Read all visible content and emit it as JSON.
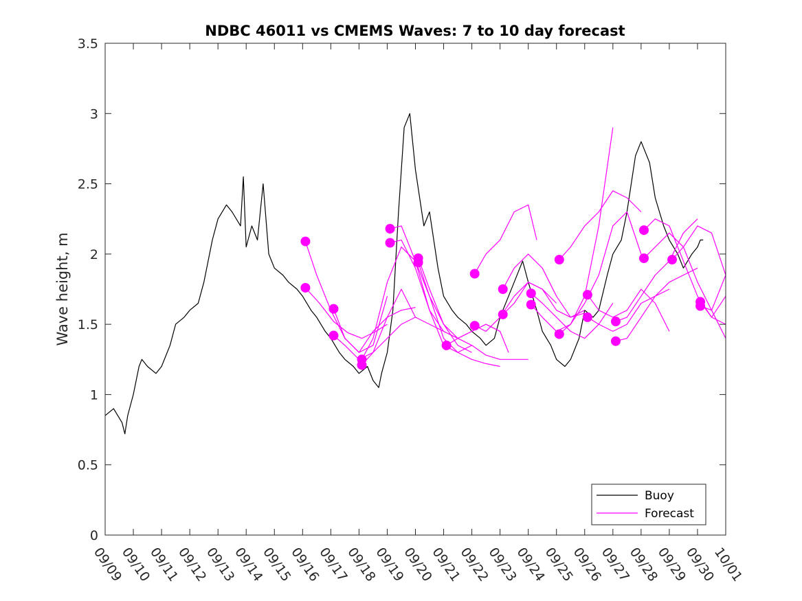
{
  "colors": {
    "buoy": "#000000",
    "forecast": "#ff00ff",
    "axis": "#262626",
    "background": "#ffffff"
  },
  "chart_data": {
    "type": "line",
    "title": "NDBC 46011 vs CMEMS Waves: 7 to 10 day forecast",
    "xlabel": "",
    "ylabel": "Wave height, m",
    "xlim": [
      0,
      22
    ],
    "ylim": [
      0,
      3.5
    ],
    "x_unit": "days since 09/09 00:00",
    "xtick_values": [
      0,
      1,
      2,
      3,
      4,
      5,
      6,
      7,
      8,
      9,
      10,
      11,
      12,
      13,
      14,
      15,
      16,
      17,
      18,
      19,
      20,
      21,
      22
    ],
    "xtick_labels": [
      "09/09",
      "09/10",
      "09/11",
      "09/12",
      "09/13",
      "09/14",
      "09/15",
      "09/16",
      "09/17",
      "09/18",
      "09/19",
      "09/20",
      "09/21",
      "09/22",
      "09/23",
      "09/24",
      "09/25",
      "09/26",
      "09/27",
      "09/28",
      "09/29",
      "09/30",
      "10/01"
    ],
    "ytick_values": [
      0,
      0.5,
      1,
      1.5,
      2,
      2.5,
      3,
      3.5
    ],
    "ytick_labels": [
      "0",
      "0.5",
      "1",
      "1.5",
      "2",
      "2.5",
      "3",
      "3.5"
    ],
    "grid": false,
    "legend": {
      "position": "bottom-right",
      "entries": [
        "Buoy",
        "Forecast"
      ]
    },
    "buoy_series": {
      "name": "Buoy",
      "x": [
        0.0,
        0.3,
        0.6,
        0.7,
        0.8,
        1.0,
        1.2,
        1.3,
        1.5,
        1.8,
        2.0,
        2.3,
        2.5,
        2.8,
        3.0,
        3.3,
        3.5,
        3.8,
        4.0,
        4.3,
        4.5,
        4.8,
        4.9,
        5.0,
        5.2,
        5.4,
        5.6,
        5.8,
        6.0,
        6.3,
        6.5,
        6.8,
        7.0,
        7.3,
        7.5,
        7.8,
        8.0,
        8.3,
        8.5,
        8.8,
        9.0,
        9.3,
        9.5,
        9.7,
        9.8,
        10.0,
        10.2,
        10.4,
        10.6,
        10.8,
        11.0,
        11.3,
        11.5,
        11.8,
        12.0,
        12.3,
        12.5,
        12.8,
        13.0,
        13.3,
        13.5,
        13.8,
        14.0,
        14.3,
        14.5,
        14.8,
        15.0,
        15.3,
        15.5,
        15.8,
        16.0,
        16.3,
        16.5,
        16.8,
        17.0,
        17.3,
        17.5,
        17.8,
        18.0,
        18.3,
        18.5,
        18.8,
        19.0,
        19.3,
        19.5,
        19.8,
        20.0,
        20.3,
        20.5,
        20.8,
        21.0,
        21.1,
        21.2
      ],
      "y": [
        0.85,
        0.9,
        0.8,
        0.72,
        0.85,
        1.0,
        1.2,
        1.25,
        1.2,
        1.15,
        1.2,
        1.35,
        1.5,
        1.55,
        1.6,
        1.65,
        1.8,
        2.1,
        2.25,
        2.35,
        2.3,
        2.2,
        2.55,
        2.05,
        2.2,
        2.1,
        2.5,
        2.0,
        1.9,
        1.85,
        1.8,
        1.75,
        1.7,
        1.6,
        1.55,
        1.45,
        1.4,
        1.3,
        1.25,
        1.2,
        1.15,
        1.2,
        1.1,
        1.05,
        1.15,
        1.3,
        1.6,
        2.3,
        2.9,
        3.0,
        2.6,
        2.2,
        2.3,
        1.9,
        1.7,
        1.6,
        1.55,
        1.5,
        1.45,
        1.4,
        1.35,
        1.4,
        1.55,
        1.7,
        1.8,
        1.95,
        1.8,
        1.6,
        1.45,
        1.35,
        1.25,
        1.2,
        1.25,
        1.4,
        1.6,
        1.55,
        1.6,
        1.85,
        2.0,
        2.1,
        2.3,
        2.7,
        2.8,
        2.65,
        2.4,
        2.2,
        2.1,
        2.0,
        1.9,
        2.0,
        2.05,
        2.1,
        2.1
      ]
    },
    "forecast_series": [
      {
        "name": "Forecast",
        "x": [
          7.1,
          7.5,
          8.0,
          8.5,
          9.0,
          9.5,
          10.0
        ],
        "y": [
          2.09,
          1.85,
          1.6,
          1.4,
          1.3,
          1.35,
          1.7
        ]
      },
      {
        "name": "Forecast",
        "x": [
          7.1,
          7.6,
          8.1,
          8.6,
          9.1,
          9.6,
          10.0
        ],
        "y": [
          1.76,
          1.65,
          1.52,
          1.44,
          1.4,
          1.45,
          1.5
        ]
      },
      {
        "name": "Forecast",
        "x": [
          8.1,
          8.5,
          9.0,
          9.5,
          10.0,
          10.5,
          11.0
        ],
        "y": [
          1.61,
          1.4,
          1.3,
          1.45,
          1.55,
          1.6,
          1.62
        ]
      },
      {
        "name": "Forecast",
        "x": [
          8.1,
          8.5,
          9.0,
          9.5,
          10.0,
          10.5,
          11.0
        ],
        "y": [
          1.42,
          1.35,
          1.25,
          1.3,
          1.4,
          1.5,
          1.55
        ]
      },
      {
        "name": "Forecast",
        "x": [
          9.1,
          9.5,
          10.0,
          10.5,
          11.0,
          11.5,
          12.0
        ],
        "y": [
          1.21,
          1.3,
          1.55,
          1.75,
          1.55,
          1.5,
          1.45
        ]
      },
      {
        "name": "Forecast",
        "x": [
          9.1,
          9.5,
          10.0,
          10.5,
          11.0,
          11.5,
          12.0,
          12.5,
          13.0
        ],
        "y": [
          1.25,
          1.4,
          1.8,
          2.05,
          1.95,
          1.7,
          1.5,
          1.35,
          1.3
        ]
      },
      {
        "name": "Forecast",
        "x": [
          10.1,
          10.5,
          11.0,
          11.5,
          12.0,
          12.5,
          13.0
        ],
        "y": [
          2.18,
          2.2,
          1.95,
          1.6,
          1.45,
          1.4,
          1.35
        ]
      },
      {
        "name": "Forecast",
        "x": [
          10.1,
          10.5,
          11.0,
          11.5,
          12.0,
          12.5,
          13.0,
          13.5,
          14.0
        ],
        "y": [
          2.08,
          2.1,
          1.9,
          1.6,
          1.35,
          1.3,
          1.25,
          1.22,
          1.2
        ]
      },
      {
        "name": "Forecast",
        "x": [
          11.1,
          11.5,
          12.0,
          12.5,
          13.0,
          13.5,
          14.0
        ],
        "y": [
          1.97,
          1.75,
          1.5,
          1.4,
          1.45,
          1.5,
          1.45
        ]
      },
      {
        "name": "Forecast",
        "x": [
          11.1,
          11.5,
          12.0,
          12.5,
          13.0,
          13.5,
          14.0,
          14.5,
          15.0
        ],
        "y": [
          1.94,
          1.7,
          1.4,
          1.3,
          1.35,
          1.28,
          1.25,
          1.25,
          1.25
        ]
      },
      {
        "name": "Forecast",
        "x": [
          12.1,
          12.5,
          13.0,
          13.5,
          14.0,
          14.3
        ],
        "y": [
          1.35,
          1.4,
          1.45,
          1.5,
          1.45,
          1.3
        ]
      },
      {
        "name": "Forecast",
        "x": [
          13.1,
          13.5,
          14.0,
          14.5,
          15.0,
          15.3
        ],
        "y": [
          1.86,
          2.0,
          2.1,
          2.3,
          2.35,
          2.1
        ]
      },
      {
        "name": "Forecast",
        "x": [
          13.1,
          13.5,
          14.0,
          14.5,
          15.0,
          15.5,
          16.0
        ],
        "y": [
          1.49,
          1.45,
          1.55,
          1.7,
          1.8,
          1.75,
          1.65
        ]
      },
      {
        "name": "Forecast",
        "x": [
          14.1,
          14.5,
          15.0,
          15.5,
          16.0,
          16.5,
          17.0
        ],
        "y": [
          1.75,
          1.9,
          2.0,
          1.9,
          1.7,
          1.55,
          1.6
        ]
      },
      {
        "name": "Forecast",
        "x": [
          14.1,
          14.5,
          15.0,
          15.5,
          16.0,
          16.5,
          17.0
        ],
        "y": [
          1.57,
          1.65,
          1.8,
          1.75,
          1.6,
          1.55,
          1.58
        ]
      },
      {
        "name": "Forecast",
        "x": [
          15.1,
          15.5,
          16.0,
          16.5,
          17.0,
          17.5,
          18.0
        ],
        "y": [
          1.72,
          1.65,
          1.55,
          1.45,
          1.4,
          1.5,
          1.65
        ]
      },
      {
        "name": "Forecast",
        "x": [
          15.1,
          15.5,
          16.0,
          16.5,
          17.0,
          17.5,
          18.0
        ],
        "y": [
          1.64,
          1.55,
          1.45,
          1.5,
          1.7,
          2.2,
          2.9
        ]
      },
      {
        "name": "Forecast",
        "x": [
          16.1,
          16.5,
          17.0,
          17.5,
          18.0,
          18.5,
          19.0
        ],
        "y": [
          1.96,
          2.05,
          2.2,
          2.3,
          2.45,
          2.4,
          2.3
        ]
      },
      {
        "name": "Forecast",
        "x": [
          16.1,
          16.5,
          17.0,
          17.5,
          18.0,
          18.5,
          19.0
        ],
        "y": [
          1.43,
          1.5,
          1.65,
          1.85,
          2.2,
          2.3,
          2.0
        ]
      },
      {
        "name": "Forecast",
        "x": [
          17.1,
          17.5,
          18.0,
          18.5,
          19.0,
          19.5,
          20.0
        ],
        "y": [
          1.71,
          1.6,
          1.55,
          1.6,
          1.75,
          1.65,
          1.45
        ]
      },
      {
        "name": "Forecast",
        "x": [
          17.1,
          17.5,
          18.0,
          18.5,
          19.0,
          19.5,
          20.0
        ],
        "y": [
          1.55,
          1.5,
          1.45,
          1.5,
          1.65,
          1.7,
          1.75
        ]
      },
      {
        "name": "Forecast",
        "x": [
          18.1,
          18.5,
          19.0,
          19.5,
          20.0,
          20.5,
          21.0
        ],
        "y": [
          1.52,
          1.55,
          1.7,
          1.85,
          1.95,
          2.15,
          2.25
        ]
      },
      {
        "name": "Forecast",
        "x": [
          18.1,
          18.5,
          19.0,
          19.5,
          20.0,
          20.5,
          21.0
        ],
        "y": [
          1.38,
          1.4,
          1.55,
          1.7,
          1.8,
          1.85,
          1.9
        ]
      },
      {
        "name": "Forecast",
        "x": [
          19.1,
          19.5,
          20.0,
          20.5,
          21.0,
          21.5,
          22.0
        ],
        "y": [
          2.17,
          2.25,
          2.2,
          1.95,
          1.7,
          1.55,
          1.5
        ]
      },
      {
        "name": "Forecast",
        "x": [
          19.1,
          19.5,
          20.0,
          20.5,
          21.0,
          21.5,
          22.0
        ],
        "y": [
          1.97,
          2.05,
          2.15,
          2.05,
          1.8,
          1.6,
          1.4
        ]
      },
      {
        "name": "Forecast",
        "x": [
          20.1,
          20.5,
          21.0,
          21.5,
          22.0
        ],
        "y": [
          1.96,
          2.05,
          2.2,
          2.15,
          1.85
        ]
      },
      {
        "name": "Forecast",
        "x": [
          21.1,
          21.5,
          22.0
        ],
        "y": [
          1.66,
          1.55,
          1.7
        ]
      },
      {
        "name": "Forecast",
        "x": [
          21.1,
          21.5,
          22.0
        ],
        "y": [
          1.63,
          1.6,
          1.85
        ]
      }
    ]
  }
}
